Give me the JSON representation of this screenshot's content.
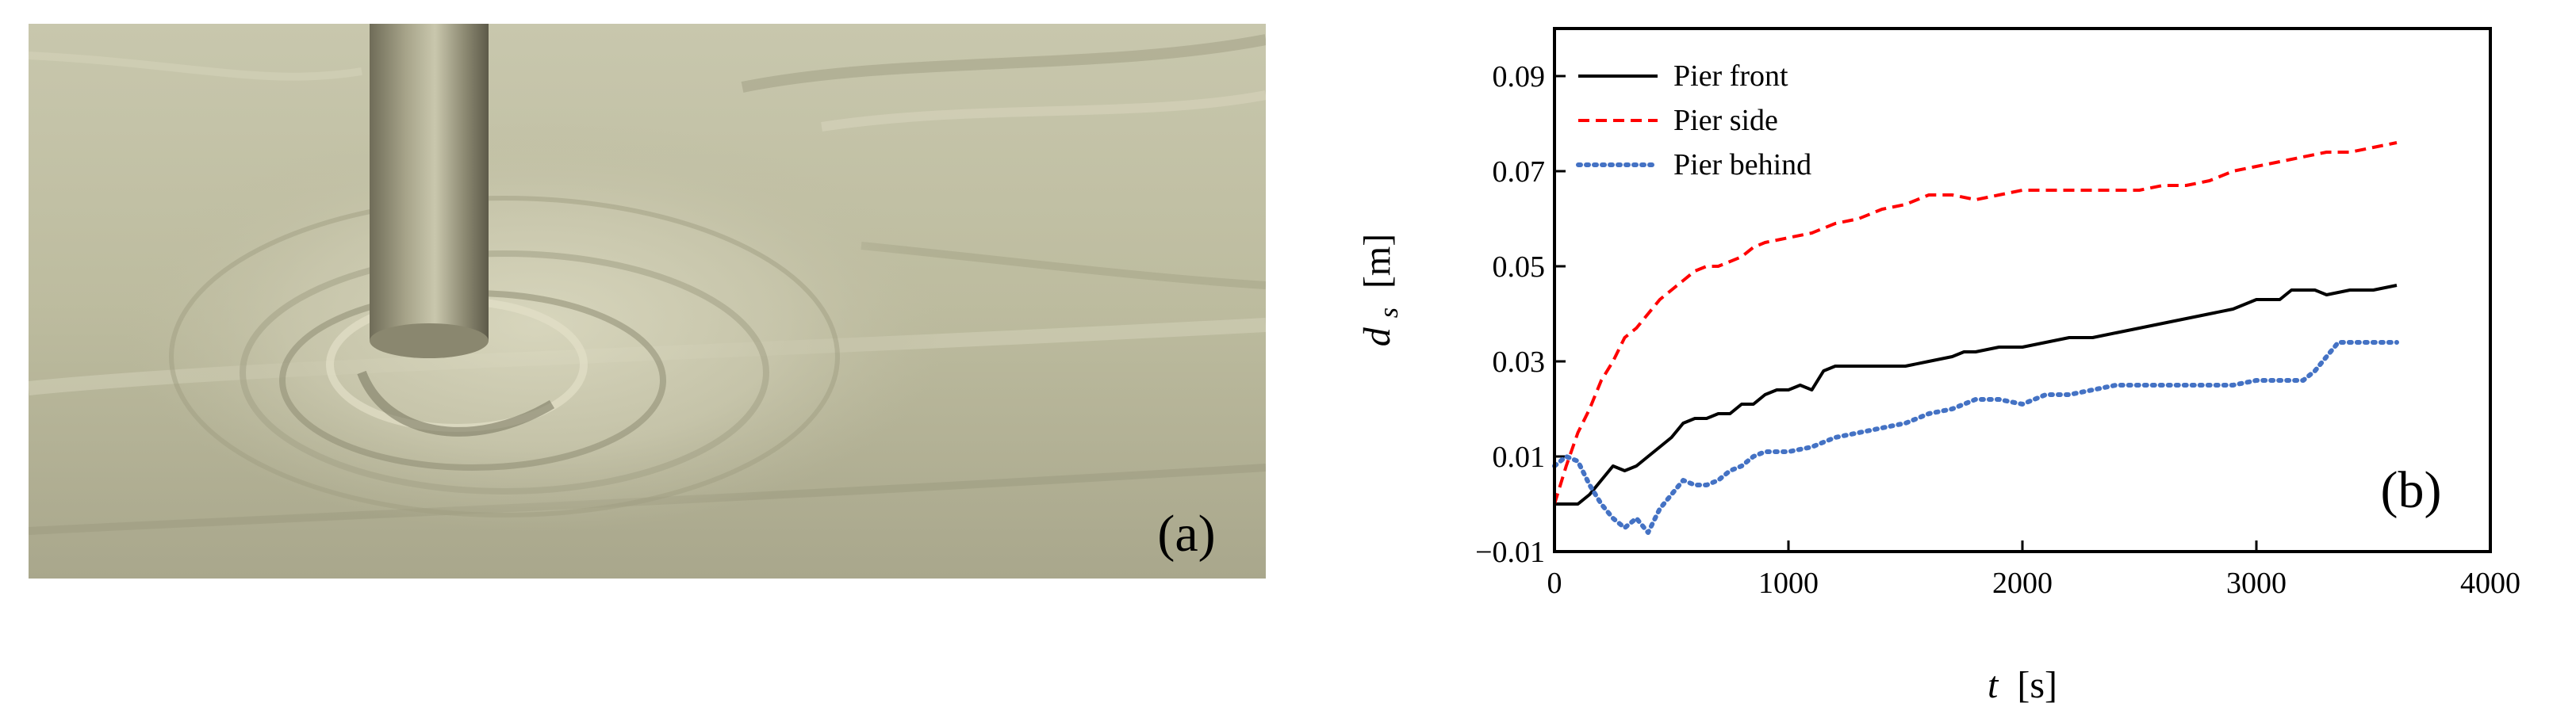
{
  "panel_a": {
    "label": "(a)"
  },
  "chart_data": {
    "type": "line",
    "panel_label": "(b)",
    "xlabel": {
      "var": "t",
      "unit": "[s]"
    },
    "ylabel": {
      "var": "d",
      "sub": "s",
      "unit": "[m]"
    },
    "xlim": [
      0,
      4000
    ],
    "ylim": [
      -0.01,
      0.1
    ],
    "xticks": [
      0,
      1000,
      2000,
      3000,
      4000
    ],
    "xtick_labels": [
      "0",
      "1000",
      "2000",
      "3000",
      "4000"
    ],
    "yticks": [
      -0.01,
      0.01,
      0.03,
      0.05,
      0.07,
      0.09
    ],
    "ytick_labels": [
      "−0.01",
      "0.01",
      "0.03",
      "0.05",
      "0.07",
      "0.09"
    ],
    "legend_position": "top-left",
    "series": [
      {
        "name": "Pier front",
        "color": "#000000",
        "dash": "solid",
        "x": [
          0,
          100,
          150,
          200,
          250,
          300,
          350,
          400,
          450,
          500,
          550,
          600,
          650,
          700,
          750,
          800,
          850,
          900,
          950,
          1000,
          1050,
          1100,
          1150,
          1200,
          1300,
          1400,
          1500,
          1600,
          1700,
          1750,
          1800,
          1900,
          2000,
          2100,
          2200,
          2300,
          2400,
          2500,
          2600,
          2700,
          2800,
          2900,
          3000,
          3050,
          3100,
          3150,
          3200,
          3250,
          3300,
          3400,
          3500,
          3600
        ],
        "y": [
          0.0,
          0.0,
          0.002,
          0.005,
          0.008,
          0.007,
          0.008,
          0.01,
          0.012,
          0.014,
          0.017,
          0.018,
          0.018,
          0.019,
          0.019,
          0.021,
          0.021,
          0.023,
          0.024,
          0.024,
          0.025,
          0.024,
          0.028,
          0.029,
          0.029,
          0.029,
          0.029,
          0.03,
          0.031,
          0.032,
          0.032,
          0.033,
          0.033,
          0.034,
          0.035,
          0.035,
          0.036,
          0.037,
          0.038,
          0.039,
          0.04,
          0.041,
          0.043,
          0.043,
          0.043,
          0.045,
          0.045,
          0.045,
          0.044,
          0.045,
          0.045,
          0.046
        ]
      },
      {
        "name": "Pier side",
        "color": "#ff0000",
        "dash": "dashed",
        "x": [
          0,
          50,
          100,
          150,
          200,
          250,
          300,
          350,
          400,
          450,
          500,
          550,
          600,
          650,
          700,
          750,
          800,
          850,
          900,
          1000,
          1100,
          1200,
          1300,
          1400,
          1500,
          1600,
          1700,
          1800,
          1900,
          2000,
          2100,
          2200,
          2300,
          2400,
          2500,
          2600,
          2700,
          2800,
          2900,
          3000,
          3100,
          3200,
          3300,
          3400,
          3500,
          3600
        ],
        "y": [
          0.0,
          0.008,
          0.015,
          0.02,
          0.026,
          0.03,
          0.035,
          0.037,
          0.04,
          0.043,
          0.045,
          0.047,
          0.049,
          0.05,
          0.05,
          0.051,
          0.052,
          0.054,
          0.055,
          0.056,
          0.057,
          0.059,
          0.06,
          0.062,
          0.063,
          0.065,
          0.065,
          0.064,
          0.065,
          0.066,
          0.066,
          0.066,
          0.066,
          0.066,
          0.066,
          0.067,
          0.067,
          0.068,
          0.07,
          0.071,
          0.072,
          0.073,
          0.074,
          0.074,
          0.075,
          0.076
        ]
      },
      {
        "name": "Pier behind",
        "color": "#4472c4",
        "dash": "dotted",
        "x": [
          0,
          50,
          100,
          150,
          200,
          250,
          300,
          350,
          400,
          450,
          500,
          550,
          600,
          650,
          700,
          750,
          800,
          850,
          900,
          1000,
          1100,
          1200,
          1300,
          1400,
          1500,
          1600,
          1700,
          1800,
          1900,
          2000,
          2100,
          2200,
          2300,
          2400,
          2500,
          2600,
          2700,
          2800,
          2900,
          3000,
          3100,
          3200,
          3250,
          3300,
          3350,
          3400,
          3500,
          3600
        ],
        "y": [
          0.008,
          0.01,
          0.009,
          0.004,
          0.0,
          -0.003,
          -0.005,
          -0.003,
          -0.006,
          -0.001,
          0.002,
          0.005,
          0.004,
          0.004,
          0.005,
          0.007,
          0.008,
          0.01,
          0.011,
          0.011,
          0.012,
          0.014,
          0.015,
          0.016,
          0.017,
          0.019,
          0.02,
          0.022,
          0.022,
          0.021,
          0.023,
          0.023,
          0.024,
          0.025,
          0.025,
          0.025,
          0.025,
          0.025,
          0.025,
          0.026,
          0.026,
          0.026,
          0.028,
          0.031,
          0.034,
          0.034,
          0.034,
          0.034
        ]
      }
    ]
  }
}
